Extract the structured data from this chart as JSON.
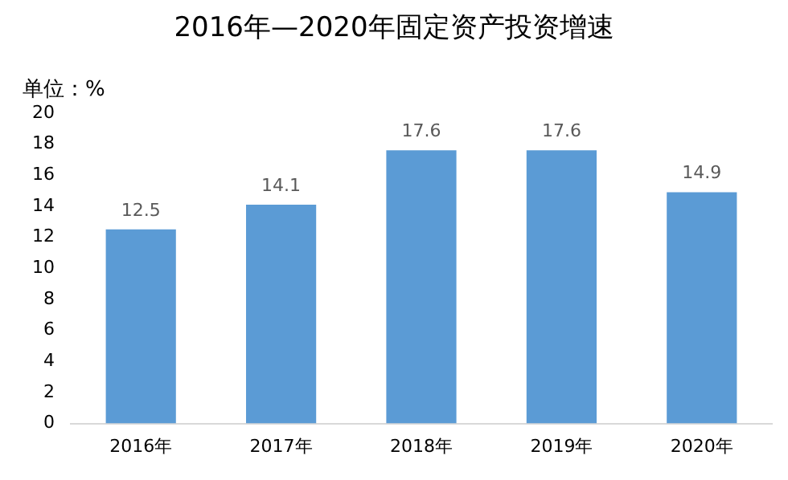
{
  "chart_data": {
    "type": "bar",
    "title": "2016年—2020年固定资产投资增速",
    "ylabel": "单位：%",
    "categories": [
      "2016年",
      "2017年",
      "2018年",
      "2019年",
      "2020年"
    ],
    "values": [
      12.5,
      14.1,
      17.6,
      17.6,
      14.9
    ],
    "color": "#5b9bd5",
    "ylim": [
      0,
      20
    ],
    "yticks": [
      0,
      2,
      4,
      6,
      8,
      10,
      12,
      14,
      16,
      18,
      20
    ],
    "grid": false,
    "legend": false,
    "data_labels": true
  }
}
